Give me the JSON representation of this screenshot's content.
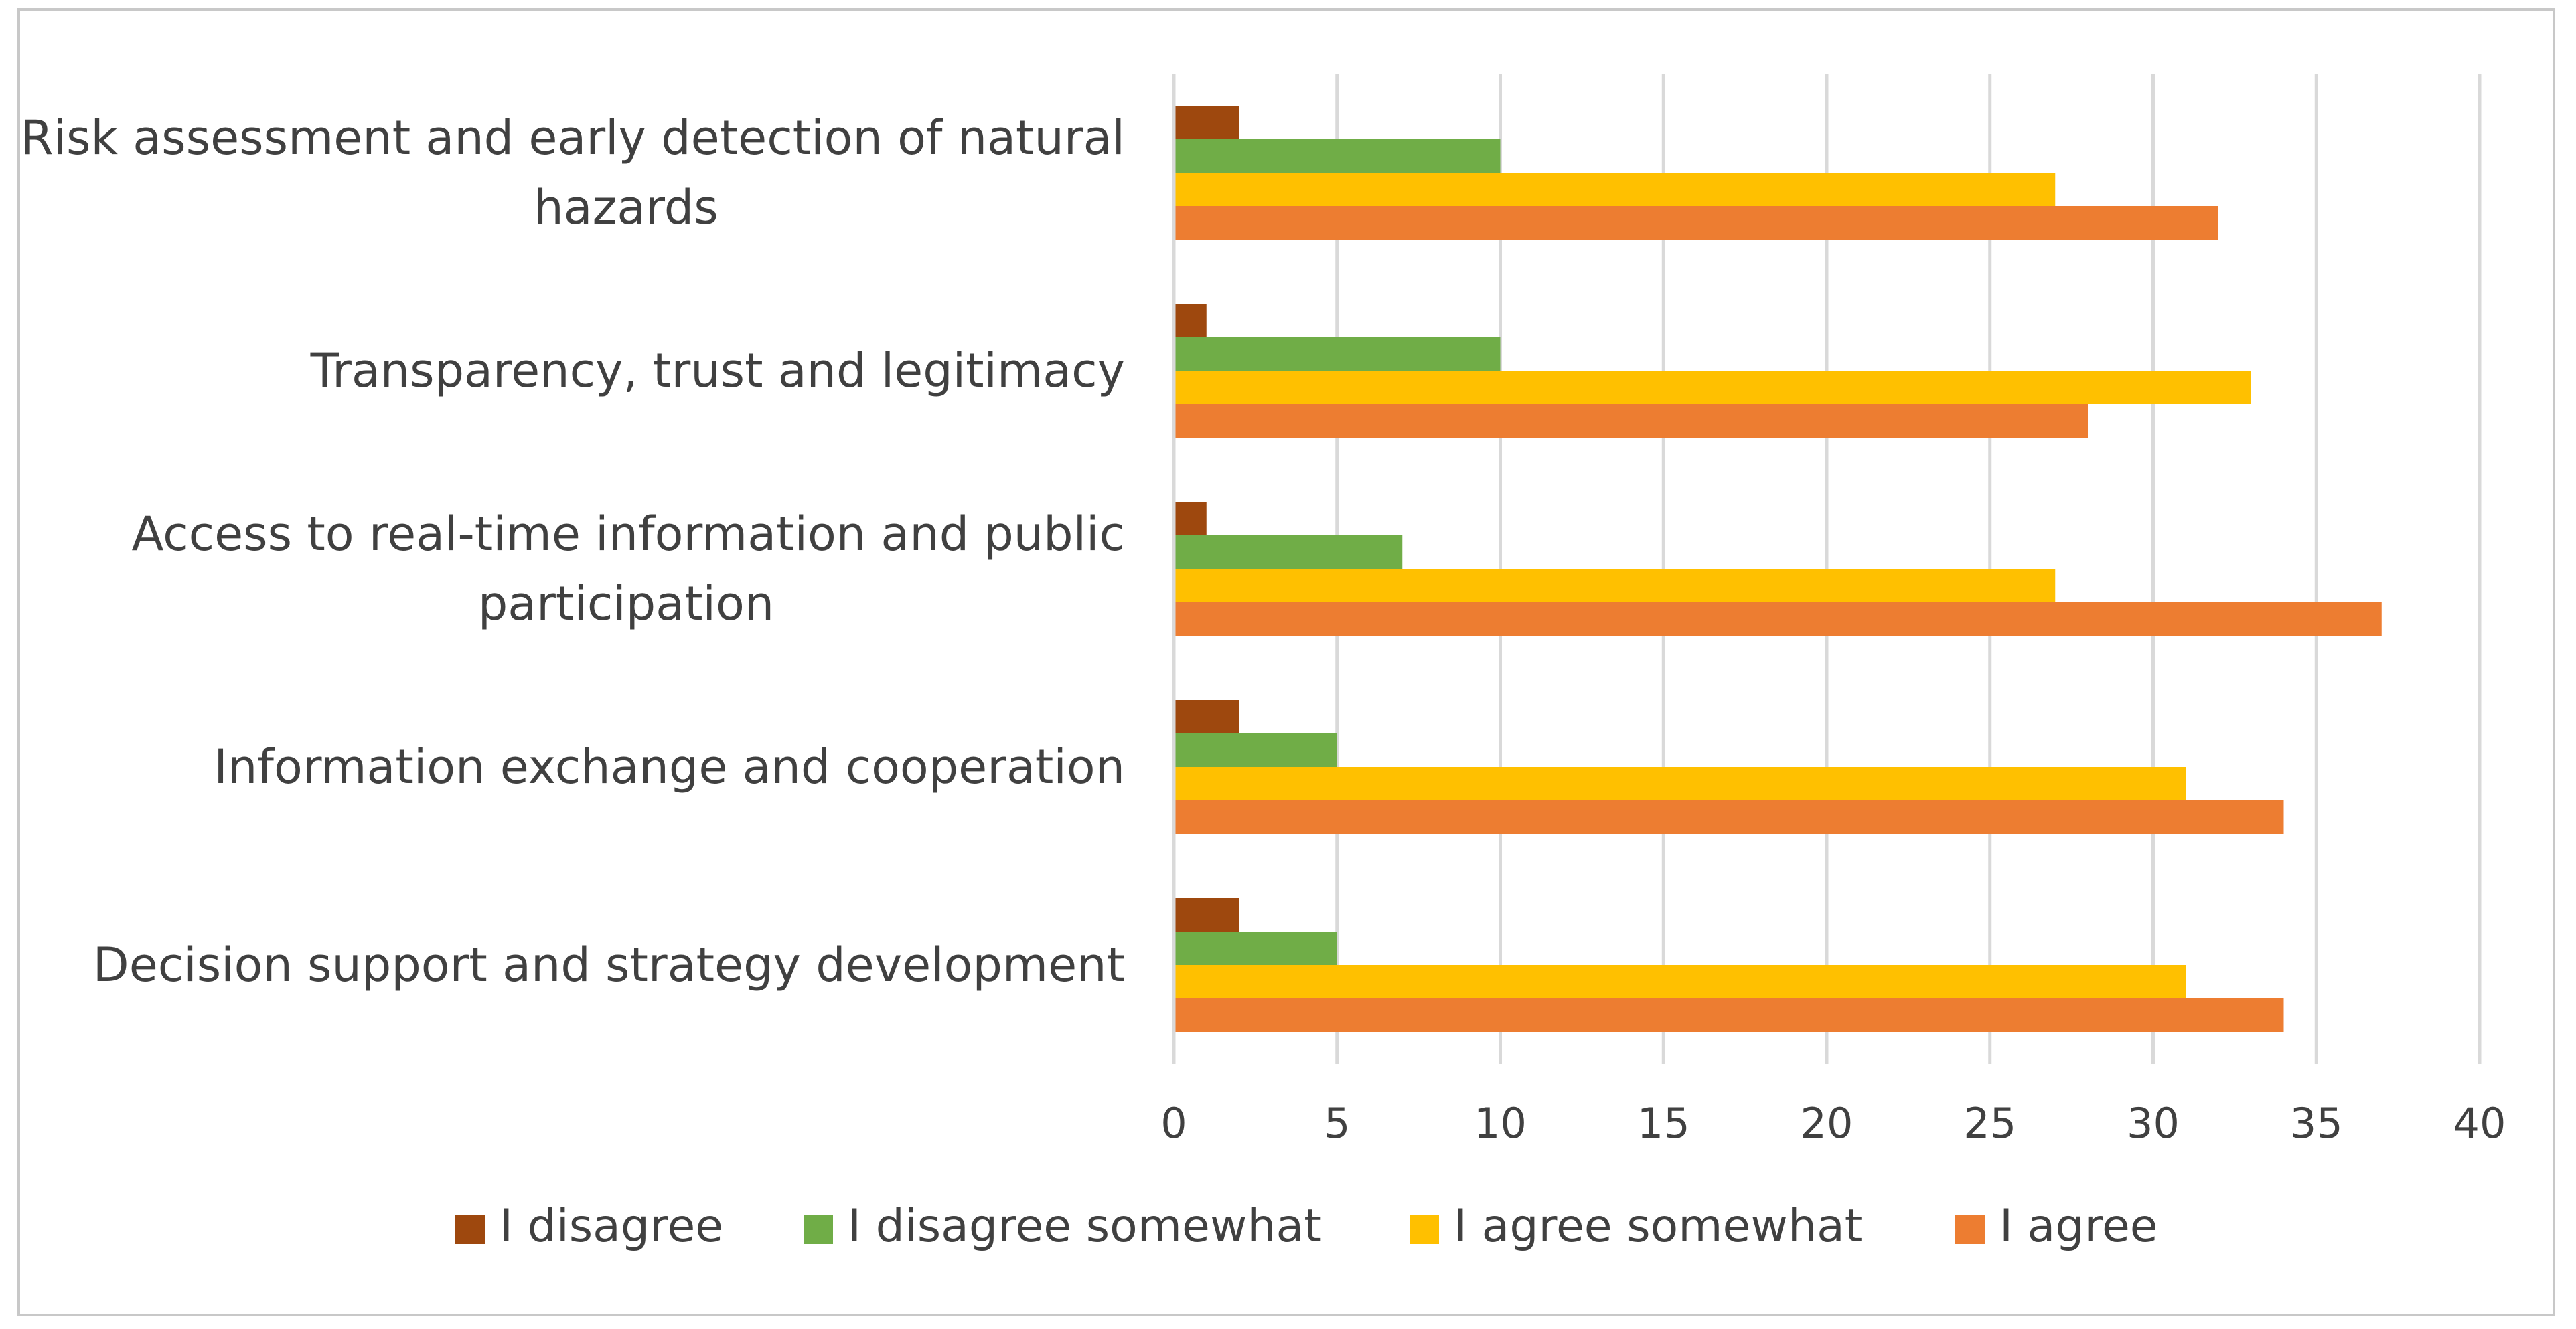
{
  "chart_data": {
    "type": "bar",
    "orientation": "horizontal",
    "title": "",
    "xlabel": "",
    "ylabel": "",
    "xlim": [
      0,
      40
    ],
    "x_ticks": [
      0,
      5,
      10,
      15,
      20,
      25,
      30,
      35,
      40
    ],
    "grid": true,
    "legend_position": "bottom",
    "categories": [
      [
        "Risk assessment and early detection of natural",
        "hazards"
      ],
      [
        "Transparency, trust and legitimacy"
      ],
      [
        "Access to real-time information and public",
        "participation"
      ],
      [
        "Information exchange and cooperation"
      ],
      [
        "Decision support and strategy development"
      ]
    ],
    "series": [
      {
        "name": "I disagree",
        "color": "#9e480e",
        "values": [
          2,
          1,
          1,
          2,
          2
        ]
      },
      {
        "name": "I disagree somewhat",
        "color": "#70ad47",
        "values": [
          10,
          10,
          7,
          5,
          5
        ]
      },
      {
        "name": "I agree somewhat",
        "color": "#ffc000",
        "values": [
          27,
          33,
          27,
          31,
          31
        ]
      },
      {
        "name": "I agree",
        "color": "#ed7d31",
        "values": [
          32,
          28,
          37,
          34,
          34
        ]
      }
    ]
  }
}
